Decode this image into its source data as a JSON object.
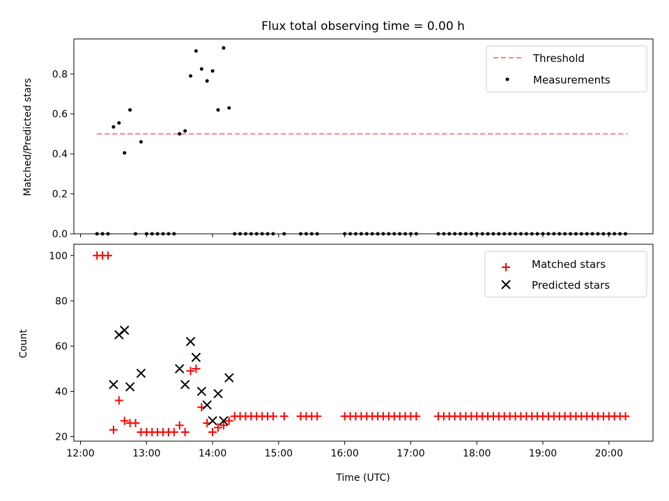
{
  "chart_data": [
    {
      "type": "scatter",
      "title": "Flux total observing time = 0.00 h",
      "xlabel": "",
      "ylabel": "Matched/Predicted stars",
      "xlim": [
        "11:54",
        "20:40"
      ],
      "ylim": [
        0,
        0.975
      ],
      "yticks": [
        0.0,
        0.2,
        0.4,
        0.6,
        0.8
      ],
      "ytick_labels": [
        "0.0",
        "0.2",
        "0.4",
        "0.6",
        "0.8"
      ],
      "grid": false,
      "legend_position": "top-right",
      "series": [
        {
          "name": "Threshold",
          "kind": "dashed-line",
          "color": "#ff7f7f",
          "x": [
            "12:15",
            "20:17"
          ],
          "y": [
            0.5,
            0.5
          ]
        },
        {
          "name": "Measurements",
          "kind": "dots",
          "color": "#000000",
          "points": [
            [
              "12:15",
              0
            ],
            [
              "12:20",
              0
            ],
            [
              "12:25",
              0
            ],
            [
              "12:30",
              0.535
            ],
            [
              "12:35",
              0.555
            ],
            [
              "12:40",
              0.405
            ],
            [
              "12:45",
              0.62
            ],
            [
              "12:50",
              0
            ],
            [
              "12:55",
              0.46
            ],
            [
              "13:00",
              0
            ],
            [
              "13:05",
              0
            ],
            [
              "13:10",
              0
            ],
            [
              "13:15",
              0
            ],
            [
              "13:20",
              0
            ],
            [
              "13:25",
              0
            ],
            [
              "13:30",
              0.5
            ],
            [
              "13:35",
              0.515
            ],
            [
              "13:40",
              0.79
            ],
            [
              "13:45",
              0.915
            ],
            [
              "13:50",
              0.825
            ],
            [
              "13:55",
              0.765
            ],
            [
              "14:00",
              0.815
            ],
            [
              "14:05",
              0.62
            ],
            [
              "14:10",
              0.93
            ],
            [
              "14:15",
              0.63
            ],
            [
              "14:20",
              0
            ],
            [
              "14:25",
              0
            ],
            [
              "14:30",
              0
            ],
            [
              "14:35",
              0
            ],
            [
              "14:40",
              0
            ],
            [
              "14:45",
              0
            ],
            [
              "14:50",
              0
            ],
            [
              "14:55",
              0
            ],
            [
              "15:05",
              0
            ],
            [
              "15:20",
              0
            ],
            [
              "15:25",
              0
            ],
            [
              "15:30",
              0
            ],
            [
              "15:35",
              0
            ],
            [
              "16:00",
              0
            ],
            [
              "16:05",
              0
            ],
            [
              "16:10",
              0
            ],
            [
              "16:15",
              0
            ],
            [
              "16:20",
              0
            ],
            [
              "16:25",
              0
            ],
            [
              "16:30",
              0
            ],
            [
              "16:35",
              0
            ],
            [
              "16:40",
              0
            ],
            [
              "16:45",
              0
            ],
            [
              "16:50",
              0
            ],
            [
              "16:55",
              0
            ],
            [
              "17:00",
              0
            ],
            [
              "17:05",
              0
            ],
            [
              "17:25",
              0
            ],
            [
              "17:30",
              0
            ],
            [
              "17:35",
              0
            ],
            [
              "17:40",
              0
            ],
            [
              "17:45",
              0
            ],
            [
              "17:50",
              0
            ],
            [
              "17:55",
              0
            ],
            [
              "18:00",
              0
            ],
            [
              "18:05",
              0
            ],
            [
              "18:10",
              0
            ],
            [
              "18:15",
              0
            ],
            [
              "18:20",
              0
            ],
            [
              "18:25",
              0
            ],
            [
              "18:30",
              0
            ],
            [
              "18:35",
              0
            ],
            [
              "18:40",
              0
            ],
            [
              "18:45",
              0
            ],
            [
              "18:50",
              0
            ],
            [
              "18:55",
              0
            ],
            [
              "19:00",
              0
            ],
            [
              "19:05",
              0
            ],
            [
              "19:10",
              0
            ],
            [
              "19:15",
              0
            ],
            [
              "19:20",
              0
            ],
            [
              "19:25",
              0
            ],
            [
              "19:30",
              0
            ],
            [
              "19:35",
              0
            ],
            [
              "19:40",
              0
            ],
            [
              "19:45",
              0
            ],
            [
              "19:50",
              0
            ],
            [
              "19:55",
              0
            ],
            [
              "20:00",
              0
            ],
            [
              "20:05",
              0
            ],
            [
              "20:10",
              0
            ],
            [
              "20:15",
              0
            ]
          ]
        }
      ]
    },
    {
      "type": "scatter",
      "title": "",
      "xlabel": "Time (UTC)",
      "ylabel": "Count",
      "xlim": [
        "11:54",
        "20:40"
      ],
      "ylim": [
        18,
        105
      ],
      "yticks": [
        20,
        40,
        60,
        80,
        100
      ],
      "ytick_labels": [
        "20",
        "40",
        "60",
        "80",
        "100"
      ],
      "xticks": [
        "12:00",
        "13:00",
        "14:00",
        "15:00",
        "16:00",
        "17:00",
        "18:00",
        "19:00",
        "20:00"
      ],
      "xtick_labels": [
        "12:00",
        "13:00",
        "14:00",
        "15:00",
        "16:00",
        "17:00",
        "18:00",
        "19:00",
        "20:00"
      ],
      "grid": false,
      "legend_position": "top-right",
      "series": [
        {
          "name": "Matched stars",
          "kind": "plus",
          "color": "#ff0000",
          "points": [
            [
              "12:15",
              100
            ],
            [
              "12:20",
              100
            ],
            [
              "12:25",
              100
            ],
            [
              "12:30",
              23
            ],
            [
              "12:35",
              36
            ],
            [
              "12:40",
              27
            ],
            [
              "12:45",
              26
            ],
            [
              "12:50",
              26
            ],
            [
              "12:55",
              22
            ],
            [
              "13:00",
              22
            ],
            [
              "13:05",
              22
            ],
            [
              "13:10",
              22
            ],
            [
              "13:15",
              22
            ],
            [
              "13:20",
              22
            ],
            [
              "13:25",
              22
            ],
            [
              "13:30",
              25
            ],
            [
              "13:35",
              22
            ],
            [
              "13:40",
              49
            ],
            [
              "13:45",
              50
            ],
            [
              "13:50",
              33
            ],
            [
              "13:55",
              26
            ],
            [
              "14:00",
              22
            ],
            [
              "14:05",
              24
            ],
            [
              "14:10",
              25
            ],
            [
              "14:15",
              27
            ],
            [
              "14:20",
              29
            ],
            [
              "14:25",
              29
            ],
            [
              "14:30",
              29
            ],
            [
              "14:35",
              29
            ],
            [
              "14:40",
              29
            ],
            [
              "14:45",
              29
            ],
            [
              "14:50",
              29
            ],
            [
              "14:55",
              29
            ],
            [
              "15:05",
              29
            ],
            [
              "15:20",
              29
            ],
            [
              "15:25",
              29
            ],
            [
              "15:30",
              29
            ],
            [
              "15:35",
              29
            ],
            [
              "16:00",
              29
            ],
            [
              "16:05",
              29
            ],
            [
              "16:10",
              29
            ],
            [
              "16:15",
              29
            ],
            [
              "16:20",
              29
            ],
            [
              "16:25",
              29
            ],
            [
              "16:30",
              29
            ],
            [
              "16:35",
              29
            ],
            [
              "16:40",
              29
            ],
            [
              "16:45",
              29
            ],
            [
              "16:50",
              29
            ],
            [
              "16:55",
              29
            ],
            [
              "17:00",
              29
            ],
            [
              "17:05",
              29
            ],
            [
              "17:25",
              29
            ],
            [
              "17:30",
              29
            ],
            [
              "17:35",
              29
            ],
            [
              "17:40",
              29
            ],
            [
              "17:45",
              29
            ],
            [
              "17:50",
              29
            ],
            [
              "17:55",
              29
            ],
            [
              "18:00",
              29
            ],
            [
              "18:05",
              29
            ],
            [
              "18:10",
              29
            ],
            [
              "18:15",
              29
            ],
            [
              "18:20",
              29
            ],
            [
              "18:25",
              29
            ],
            [
              "18:30",
              29
            ],
            [
              "18:35",
              29
            ],
            [
              "18:40",
              29
            ],
            [
              "18:45",
              29
            ],
            [
              "18:50",
              29
            ],
            [
              "18:55",
              29
            ],
            [
              "19:00",
              29
            ],
            [
              "19:05",
              29
            ],
            [
              "19:10",
              29
            ],
            [
              "19:15",
              29
            ],
            [
              "19:20",
              29
            ],
            [
              "19:25",
              29
            ],
            [
              "19:30",
              29
            ],
            [
              "19:35",
              29
            ],
            [
              "19:40",
              29
            ],
            [
              "19:45",
              29
            ],
            [
              "19:50",
              29
            ],
            [
              "19:55",
              29
            ],
            [
              "20:00",
              29
            ],
            [
              "20:05",
              29
            ],
            [
              "20:10",
              29
            ],
            [
              "20:15",
              29
            ]
          ]
        },
        {
          "name": "Predicted stars",
          "kind": "cross",
          "color": "#000000",
          "points": [
            [
              "12:30",
              43
            ],
            [
              "12:35",
              65
            ],
            [
              "12:40",
              67
            ],
            [
              "12:45",
              42
            ],
            [
              "12:55",
              48
            ],
            [
              "13:30",
              50
            ],
            [
              "13:35",
              43
            ],
            [
              "13:40",
              62
            ],
            [
              "13:45",
              55
            ],
            [
              "13:50",
              40
            ],
            [
              "13:55",
              34
            ],
            [
              "14:00",
              27
            ],
            [
              "14:05",
              39
            ],
            [
              "14:10",
              27
            ],
            [
              "14:15",
              46
            ]
          ]
        }
      ]
    }
  ]
}
